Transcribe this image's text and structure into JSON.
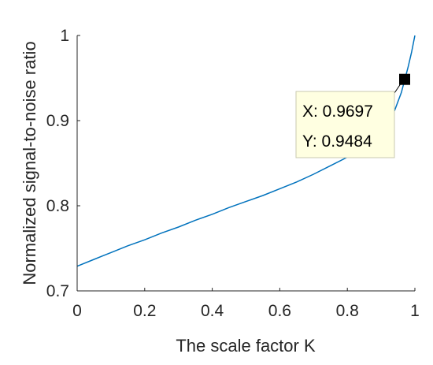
{
  "chart_data": {
    "type": "line",
    "xlabel": "The scale factor K",
    "ylabel": "Normalized signal-to-noise ratio",
    "xlim": [
      0,
      1
    ],
    "ylim": [
      0.7,
      1
    ],
    "xticks": [
      "0",
      "0.2",
      "0.4",
      "0.6",
      "0.8",
      "1"
    ],
    "yticks": [
      "0.7",
      "0.8",
      "0.9",
      "1"
    ],
    "grid": false,
    "line_color": "#0072BD",
    "series": [
      {
        "x": [
          0,
          0.05,
          0.1,
          0.15,
          0.2,
          0.25,
          0.3,
          0.35,
          0.4,
          0.45,
          0.5,
          0.55,
          0.6,
          0.65,
          0.7,
          0.75,
          0.8,
          0.85,
          0.88,
          0.9,
          0.92,
          0.94,
          0.96,
          0.97,
          0.98,
          0.99,
          1.0
        ],
        "y": [
          0.729,
          0.737,
          0.745,
          0.753,
          0.76,
          0.768,
          0.775,
          0.783,
          0.79,
          0.798,
          0.805,
          0.812,
          0.82,
          0.828,
          0.837,
          0.847,
          0.857,
          0.87,
          0.88,
          0.888,
          0.898,
          0.912,
          0.933,
          0.948,
          0.963,
          0.98,
          1.0
        ]
      }
    ],
    "datatip": {
      "x": 0.9697,
      "y": 0.9484,
      "x_text": "X: 0.9697",
      "y_text": "Y: 0.9484"
    }
  }
}
